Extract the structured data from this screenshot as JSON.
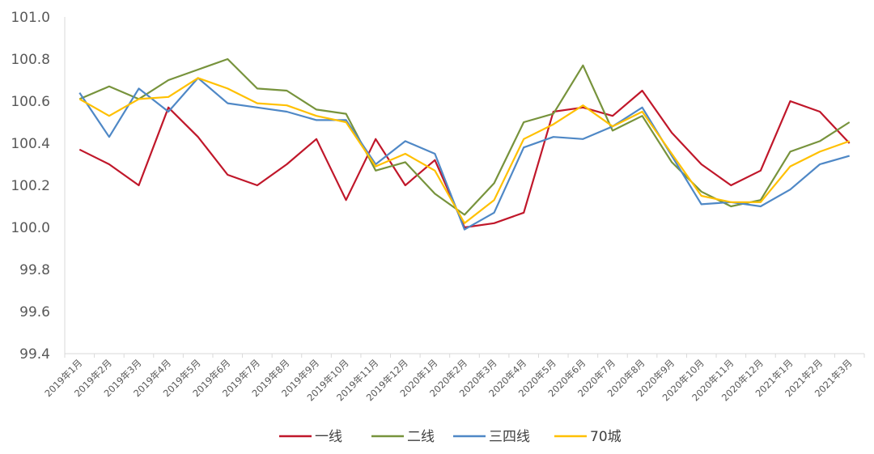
{
  "chart_data": {
    "type": "line",
    "title": "",
    "xlabel": "",
    "ylabel": "",
    "ylim": [
      99.4,
      101.0
    ],
    "yticks": [
      "101.0",
      "100.8",
      "100.6",
      "100.4",
      "100.2",
      "100.0",
      "99.8",
      "99.6",
      "99.4"
    ],
    "grid": false,
    "legend_position": "bottom",
    "categories": [
      "2019年1月",
      "2019年2月",
      "2019年3月",
      "2019年4月",
      "2019年5月",
      "2019年6月",
      "2019年7月",
      "2019年8月",
      "2019年9月",
      "2019年10月",
      "2019年11月",
      "2019年12月",
      "2020年1月",
      "2020年2月",
      "2020年3月",
      "2020年4月",
      "2020年5月",
      "2020年6月",
      "2020年7月",
      "2020年8月",
      "2020年9月",
      "2020年10月",
      "2020年11月",
      "2020年12月",
      "2021年1月",
      "2021年2月",
      "2021年3月"
    ],
    "series": [
      {
        "name": "一线",
        "color": "#C0172A",
        "values": [
          100.37,
          100.3,
          100.2,
          100.57,
          100.43,
          100.25,
          100.2,
          100.3,
          100.42,
          100.13,
          100.42,
          100.2,
          100.32,
          100.0,
          100.02,
          100.07,
          100.55,
          100.57,
          100.53,
          100.65,
          100.45,
          100.3,
          100.2,
          100.27,
          100.6,
          100.55,
          100.4
        ]
      },
      {
        "name": "二线",
        "color": "#77933C",
        "values": [
          100.61,
          100.67,
          100.61,
          100.7,
          100.75,
          100.8,
          100.66,
          100.65,
          100.56,
          100.54,
          100.27,
          100.31,
          100.16,
          100.06,
          100.21,
          100.5,
          100.54,
          100.77,
          100.46,
          100.53,
          100.31,
          100.17,
          100.1,
          100.13,
          100.36,
          100.41,
          100.5
        ]
      },
      {
        "name": "三四线",
        "color": "#4F88C6",
        "values": [
          100.64,
          100.43,
          100.66,
          100.55,
          100.71,
          100.59,
          100.57,
          100.55,
          100.51,
          100.51,
          100.3,
          100.41,
          100.35,
          99.99,
          100.07,
          100.38,
          100.43,
          100.42,
          100.48,
          100.57,
          100.34,
          100.11,
          100.12,
          100.1,
          100.18,
          100.3,
          100.34
        ]
      },
      {
        "name": "70城",
        "color": "#FFC000",
        "values": [
          100.61,
          100.53,
          100.61,
          100.62,
          100.71,
          100.66,
          100.59,
          100.58,
          100.53,
          100.5,
          100.29,
          100.35,
          100.27,
          100.02,
          100.13,
          100.42,
          100.49,
          100.58,
          100.48,
          100.55,
          100.35,
          100.15,
          100.12,
          100.12,
          100.29,
          100.36,
          100.41
        ]
      }
    ]
  }
}
